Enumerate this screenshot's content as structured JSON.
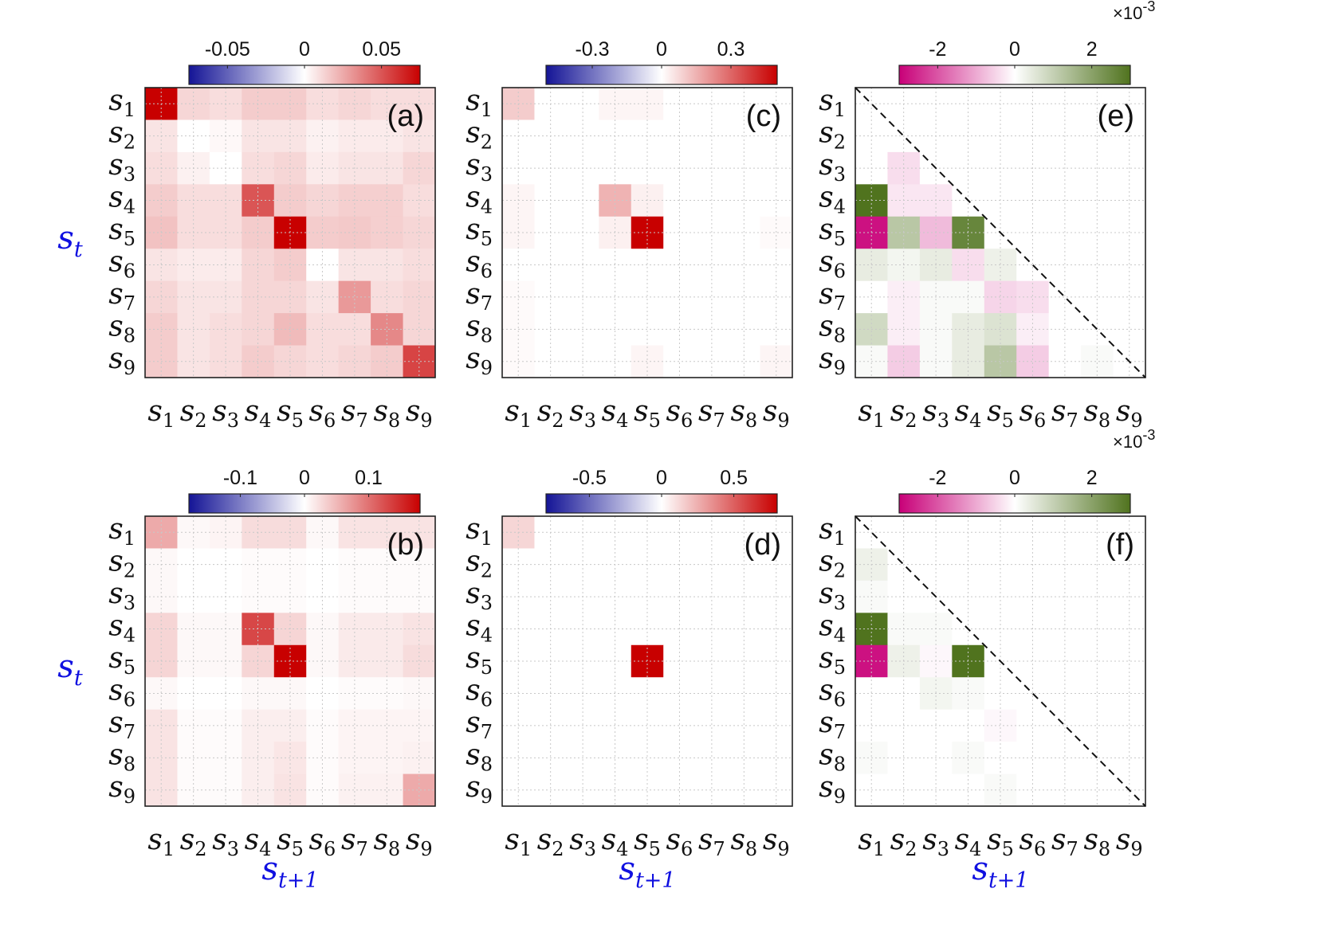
{
  "figure": {
    "state_labels": [
      "s1",
      "s2",
      "s3",
      "s4",
      "s5",
      "s6",
      "s7",
      "s8",
      "s9"
    ],
    "row_axis_label": {
      "base": "s",
      "sub": "t"
    },
    "col_axis_label": {
      "base": "s",
      "sub": "t+1"
    }
  },
  "chart_data": [
    {
      "type": "heatmap",
      "panel": "(a)",
      "colormap": "blue-white-red",
      "clim": [
        -0.075,
        0.075
      ],
      "colorbar_ticks": [
        -0.05,
        0,
        0.05
      ],
      "colorbar_tick_labels": [
        "-0.05",
        "0",
        "0.05"
      ],
      "show_row_labels": true,
      "show_row_axis_label": true,
      "show_col_axis_label": false,
      "diagonal_line": false,
      "values": [
        [
          0.075,
          0.012,
          0.01,
          0.015,
          0.015,
          0.01,
          0.012,
          0.01,
          0.01
        ],
        [
          0.008,
          0.0,
          0.002,
          0.008,
          0.008,
          0.004,
          0.006,
          0.006,
          0.008
        ],
        [
          0.01,
          0.004,
          0.0,
          0.01,
          0.012,
          0.006,
          0.008,
          0.008,
          0.012
        ],
        [
          0.015,
          0.01,
          0.01,
          0.05,
          0.015,
          0.012,
          0.014,
          0.014,
          0.01
        ],
        [
          0.018,
          0.01,
          0.01,
          0.015,
          0.075,
          0.015,
          0.016,
          0.014,
          0.012
        ],
        [
          0.008,
          0.006,
          0.006,
          0.012,
          0.015,
          0.0,
          0.008,
          0.008,
          0.01
        ],
        [
          0.012,
          0.008,
          0.008,
          0.012,
          0.012,
          0.008,
          0.03,
          0.01,
          0.012
        ],
        [
          0.015,
          0.008,
          0.01,
          0.012,
          0.02,
          0.01,
          0.01,
          0.035,
          0.012
        ],
        [
          0.015,
          0.008,
          0.01,
          0.015,
          0.012,
          0.01,
          0.012,
          0.015,
          0.055
        ]
      ]
    },
    {
      "type": "heatmap",
      "panel": "(b)",
      "colormap": "blue-white-red",
      "clim": [
        -0.18,
        0.18
      ],
      "colorbar_ticks": [
        -0.1,
        0,
        0.1
      ],
      "colorbar_tick_labels": [
        "-0.1",
        "0",
        "0.1"
      ],
      "show_row_labels": true,
      "show_row_axis_label": true,
      "show_col_axis_label": true,
      "diagonal_line": false,
      "values": [
        [
          0.06,
          0.005,
          0.008,
          0.025,
          0.025,
          0.005,
          0.02,
          0.02,
          0.02
        ],
        [
          0.005,
          0.0,
          0.0,
          0.003,
          0.003,
          0.0,
          0.003,
          0.003,
          0.003
        ],
        [
          0.005,
          0.0,
          0.0,
          0.003,
          0.003,
          0.0,
          0.003,
          0.003,
          0.003
        ],
        [
          0.03,
          0.005,
          0.005,
          0.13,
          0.03,
          0.005,
          0.015,
          0.015,
          0.02
        ],
        [
          0.03,
          0.005,
          0.005,
          0.03,
          0.18,
          0.005,
          0.015,
          0.015,
          0.025
        ],
        [
          0.005,
          0.0,
          0.0,
          0.005,
          0.005,
          0.0,
          0.003,
          0.003,
          0.005
        ],
        [
          0.02,
          0.003,
          0.003,
          0.012,
          0.012,
          0.003,
          0.008,
          0.008,
          0.008
        ],
        [
          0.02,
          0.003,
          0.003,
          0.012,
          0.018,
          0.003,
          0.008,
          0.008,
          0.01
        ],
        [
          0.02,
          0.003,
          0.003,
          0.012,
          0.02,
          0.003,
          0.01,
          0.01,
          0.06
        ]
      ]
    },
    {
      "type": "heatmap",
      "panel": "(c)",
      "colormap": "blue-white-red",
      "clim": [
        -0.5,
        0.5
      ],
      "colorbar_ticks": [
        -0.3,
        0,
        0.3
      ],
      "colorbar_tick_labels": [
        "-0.3",
        "0",
        "0.3"
      ],
      "show_row_labels": true,
      "show_row_axis_label": false,
      "show_col_axis_label": false,
      "diagonal_line": false,
      "values": [
        [
          0.1,
          0.0,
          0.0,
          0.02,
          0.02,
          0.0,
          0.0,
          0.0,
          0.0
        ],
        [
          0.0,
          0.0,
          0.0,
          0.0,
          0.0,
          0.0,
          0.0,
          0.0,
          0.0
        ],
        [
          0.0,
          0.0,
          0.0,
          0.0,
          0.0,
          0.0,
          0.0,
          0.0,
          0.0
        ],
        [
          0.02,
          0.0,
          0.0,
          0.15,
          0.03,
          0.0,
          0.0,
          0.0,
          0.0
        ],
        [
          0.02,
          0.0,
          0.0,
          0.03,
          0.5,
          0.0,
          0.0,
          0.0,
          0.01
        ],
        [
          0.0,
          0.0,
          0.0,
          0.0,
          0.0,
          0.0,
          0.0,
          0.0,
          0.0
        ],
        [
          0.01,
          0.0,
          0.0,
          0.0,
          0.0,
          0.0,
          0.0,
          0.0,
          0.0
        ],
        [
          0.01,
          0.0,
          0.0,
          0.0,
          0.0,
          0.0,
          0.0,
          0.0,
          0.0
        ],
        [
          0.01,
          0.0,
          0.0,
          0.0,
          0.02,
          0.0,
          0.0,
          0.0,
          0.02
        ]
      ]
    },
    {
      "type": "heatmap",
      "panel": "(d)",
      "colormap": "blue-white-red",
      "clim": [
        -0.8,
        0.8
      ],
      "colorbar_ticks": [
        -0.5,
        0,
        0.5
      ],
      "colorbar_tick_labels": [
        "-0.5",
        "0",
        "0.5"
      ],
      "show_row_labels": true,
      "show_row_axis_label": false,
      "show_col_axis_label": true,
      "diagonal_line": false,
      "values": [
        [
          0.13,
          0.0,
          0.0,
          0.0,
          0.0,
          0.0,
          0.0,
          0.0,
          0.0
        ],
        [
          0.0,
          0.0,
          0.0,
          0.0,
          0.0,
          0.0,
          0.0,
          0.0,
          0.0
        ],
        [
          0.0,
          0.0,
          0.0,
          0.0,
          0.0,
          0.0,
          0.0,
          0.0,
          0.0
        ],
        [
          0.0,
          0.0,
          0.0,
          0.0,
          0.0,
          0.0,
          0.0,
          0.0,
          0.0
        ],
        [
          0.0,
          0.0,
          0.0,
          0.0,
          0.8,
          0.0,
          0.0,
          0.0,
          0.0
        ],
        [
          0.0,
          0.0,
          0.0,
          0.0,
          0.0,
          0.0,
          0.0,
          0.0,
          0.0
        ],
        [
          0.0,
          0.0,
          0.0,
          0.0,
          0.0,
          0.0,
          0.0,
          0.0,
          0.0
        ],
        [
          0.0,
          0.0,
          0.0,
          0.0,
          0.0,
          0.0,
          0.0,
          0.0,
          0.0
        ],
        [
          0.0,
          0.0,
          0.0,
          0.0,
          0.0,
          0.0,
          0.0,
          0.0,
          0.0
        ]
      ]
    },
    {
      "type": "heatmap",
      "panel": "(e)",
      "colormap": "magenta-white-green",
      "clim": [
        -3,
        3
      ],
      "scale_label": "×10",
      "scale_exponent": "-3",
      "colorbar_ticks": [
        -2,
        0,
        2
      ],
      "colorbar_tick_labels": [
        "-2",
        "0",
        "2"
      ],
      "show_row_labels": true,
      "show_row_axis_label": false,
      "show_col_axis_label": false,
      "diagonal_line": true,
      "values": [
        [
          0,
          0,
          0,
          0,
          0,
          0,
          0,
          0,
          0
        ],
        [
          0,
          0,
          0,
          0,
          0,
          0,
          0,
          0,
          0
        ],
        [
          0,
          -0.4,
          0,
          0,
          0,
          0,
          0,
          0,
          0
        ],
        [
          3.0,
          -0.3,
          -0.3,
          0,
          0,
          0,
          0,
          0,
          0
        ],
        [
          -2.8,
          1.2,
          -0.8,
          2.6,
          0,
          0,
          0,
          0,
          0
        ],
        [
          0.4,
          0.2,
          0.4,
          -0.4,
          0.3,
          0,
          0,
          0,
          0
        ],
        [
          0,
          -0.2,
          0.1,
          0.1,
          -0.5,
          -0.4,
          0,
          0,
          0
        ],
        [
          0.8,
          -0.2,
          0.1,
          0.4,
          0.6,
          -0.2,
          0,
          0,
          0
        ],
        [
          0.1,
          -0.6,
          0.1,
          0.4,
          1.2,
          -0.6,
          0,
          0.1,
          0
        ]
      ]
    },
    {
      "type": "heatmap",
      "panel": "(f)",
      "colormap": "magenta-white-green",
      "clim": [
        -3,
        3
      ],
      "scale_label": "×10",
      "scale_exponent": "-3",
      "colorbar_ticks": [
        -2,
        0,
        2
      ],
      "colorbar_tick_labels": [
        "-2",
        "0",
        "2"
      ],
      "show_row_labels": true,
      "show_row_axis_label": false,
      "show_col_axis_label": true,
      "diagonal_line": true,
      "values": [
        [
          0,
          0,
          0,
          0,
          0,
          0,
          0,
          0,
          0
        ],
        [
          0.3,
          0,
          0,
          0,
          0,
          0,
          0,
          0,
          0
        ],
        [
          0.1,
          0,
          0,
          0,
          0,
          0,
          0,
          0,
          0
        ],
        [
          3.0,
          0.1,
          0.1,
          0,
          0,
          0,
          0,
          0,
          0
        ],
        [
          -2.8,
          0.3,
          -0.1,
          3.0,
          0,
          0,
          0,
          0,
          0
        ],
        [
          0,
          0,
          0.2,
          0.1,
          0,
          0,
          0,
          0,
          0
        ],
        [
          0,
          0,
          0,
          0,
          -0.1,
          0,
          0,
          0,
          0
        ],
        [
          0.1,
          0,
          0,
          0.1,
          0,
          0,
          0,
          0,
          0
        ],
        [
          0,
          0,
          0,
          0,
          0.1,
          0,
          0,
          0,
          0
        ]
      ]
    }
  ]
}
